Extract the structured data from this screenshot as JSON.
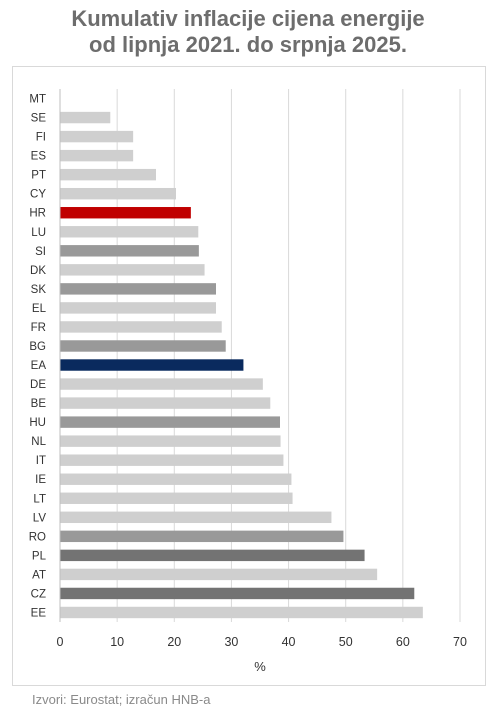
{
  "title": {
    "line1": "Kumulativ inflacije cijena energije",
    "line2": "od lipnja 2021. do srpnja 2025."
  },
  "source": "Izvori: Eurostat; izračun HNB-a",
  "colors": {
    "default": "#cfcfcf",
    "highlight_hr": "#c00000",
    "highlight_ea": "#0a2a5e",
    "medium_gray": "#999999",
    "dark_gray": "#737373",
    "grid": "#d9d9d9",
    "axis_text": "#333333"
  },
  "chart_data": {
    "type": "bar",
    "orientation": "horizontal",
    "xlabel": "%",
    "xlim": [
      0,
      70
    ],
    "xticks": [
      0,
      10,
      20,
      30,
      40,
      50,
      60,
      70
    ],
    "grid": "vertical",
    "categories": [
      "MT",
      "SE",
      "FI",
      "ES",
      "PT",
      "CY",
      "HR",
      "LU",
      "SI",
      "DK",
      "SK",
      "EL",
      "FR",
      "BG",
      "EA",
      "DE",
      "BE",
      "HU",
      "NL",
      "IT",
      "IE",
      "LT",
      "LV",
      "RO",
      "PL",
      "AT",
      "CZ",
      "EE"
    ],
    "values": [
      0,
      8.8,
      12.8,
      12.8,
      16.8,
      20.3,
      22.9,
      24.2,
      24.3,
      25.3,
      27.3,
      27.3,
      28.3,
      29.0,
      32.1,
      35.5,
      36.8,
      38.5,
      38.6,
      39.1,
      40.5,
      40.7,
      47.5,
      49.6,
      53.3,
      55.5,
      62.0,
      63.5
    ],
    "bar_colors": [
      "default",
      "default",
      "default",
      "default",
      "default",
      "default",
      "highlight_hr",
      "default",
      "medium_gray",
      "default",
      "medium_gray",
      "default",
      "default",
      "medium_gray",
      "highlight_ea",
      "default",
      "default",
      "medium_gray",
      "default",
      "default",
      "default",
      "default",
      "default",
      "medium_gray",
      "dark_gray",
      "default",
      "dark_gray",
      "default"
    ]
  }
}
